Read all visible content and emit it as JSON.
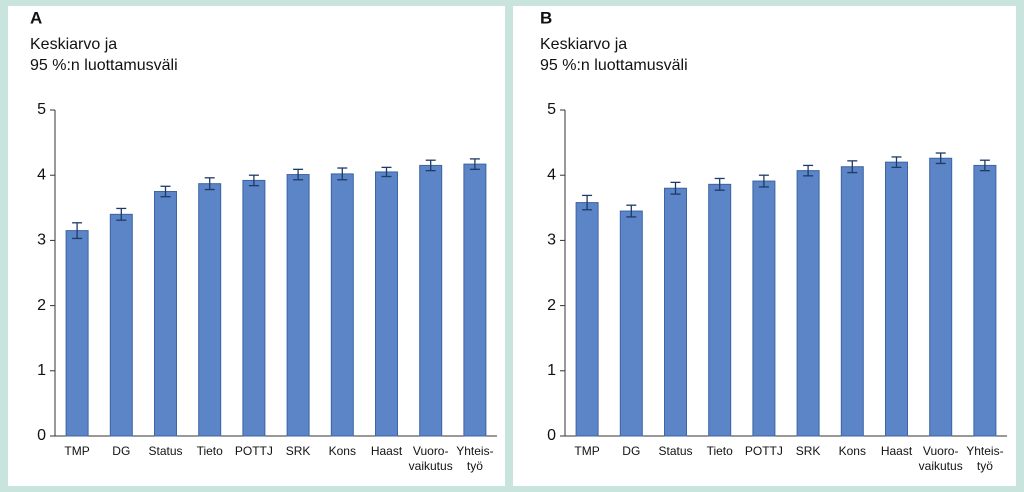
{
  "chart_data": [
    {
      "type": "bar",
      "title": "A",
      "y_label": [
        "Keskiarvo ja",
        "95 %:n luottamusväli"
      ],
      "categories": [
        "TMP",
        "DG",
        "Status",
        "Tieto",
        "POTTJ",
        "SRK",
        "Kons",
        "Haast",
        [
          "Vuoro-",
          "vaikutus"
        ],
        [
          "Yhteis-",
          "työ"
        ]
      ],
      "values": [
        3.15,
        3.4,
        3.75,
        3.87,
        3.92,
        4.01,
        4.02,
        4.05,
        4.15,
        4.17
      ],
      "errors": [
        0.12,
        0.09,
        0.08,
        0.09,
        0.08,
        0.08,
        0.09,
        0.07,
        0.08,
        0.08
      ],
      "color": "#5b85c6",
      "ylim": [
        0,
        5
      ],
      "yticks": [
        0,
        1,
        2,
        3,
        4,
        5
      ]
    },
    {
      "type": "bar",
      "title": "B",
      "y_label": [
        "Keskiarvo ja",
        "95 %:n luottamusväli"
      ],
      "categories": [
        "TMP",
        "DG",
        "Status",
        "Tieto",
        "POTTJ",
        "SRK",
        "Kons",
        "Haast",
        [
          "Vuoro-",
          "vaikutus"
        ],
        [
          "Yhteis-",
          "työ"
        ]
      ],
      "values": [
        3.58,
        3.45,
        3.8,
        3.86,
        3.91,
        4.07,
        4.13,
        4.2,
        4.26,
        4.15
      ],
      "errors": [
        0.11,
        0.09,
        0.09,
        0.09,
        0.09,
        0.08,
        0.09,
        0.08,
        0.08,
        0.08
      ],
      "color": "#5b85c6",
      "ylim": [
        0,
        5
      ],
      "yticks": [
        0,
        1,
        2,
        3,
        4,
        5
      ]
    }
  ]
}
